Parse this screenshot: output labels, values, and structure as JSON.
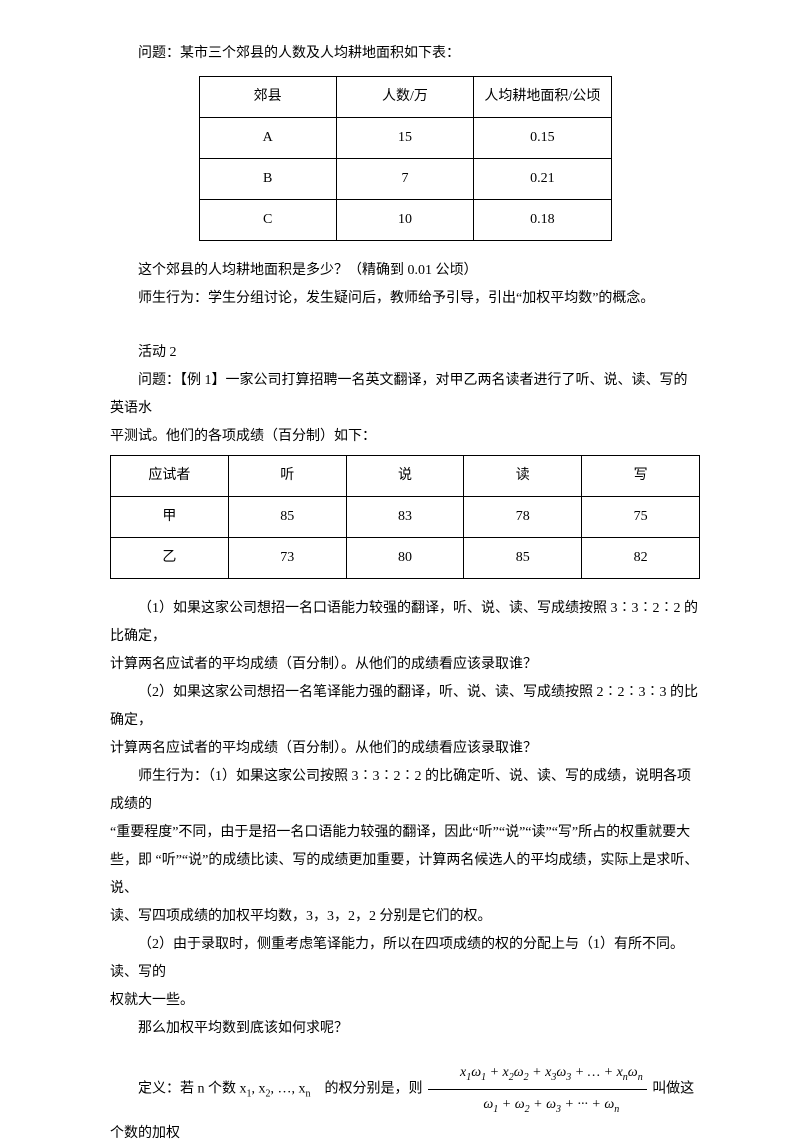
{
  "intro": "问题：某市三个郊县的人数及人均耕地面积如下表：",
  "table1": {
    "headers": [
      "郊县",
      "人数/万",
      "人均耕地面积/公顷"
    ],
    "rows": [
      [
        "A",
        "15",
        "0.15"
      ],
      [
        "B",
        "7",
        "0.21"
      ],
      [
        "C",
        "10",
        "0.18"
      ]
    ]
  },
  "p1": "这个郊县的人均耕地面积是多少？（精确到 0.01 公顷）",
  "p2": "师生行为：学生分组讨论，发生疑问后，教师给予引导，引出“加权平均数”的概念。",
  "activity2": "活动 2",
  "ex1a": "问题：【例 1】一家公司打算招聘一名英文翻译，对甲乙两名读者进行了听、说、读、写的英语水",
  "ex1b": "平测试。他们的各项成绩（百分制）如下：",
  "table2": {
    "headers": [
      "应试者",
      "听",
      "说",
      "读",
      "写"
    ],
    "rows": [
      [
        "甲",
        "85",
        "83",
        "78",
        "75"
      ],
      [
        "乙",
        "73",
        "80",
        "85",
        "82"
      ]
    ]
  },
  "q1a": "（1）如果这家公司想招一名口语能力较强的翻译，听、说、读、写成绩按照 3∶3∶2∶2 的比确定，",
  "q1b": "计算两名应试者的平均成绩（百分制）。从他们的成绩看应该录取谁？",
  "q2a": "（2）如果这家公司想招一名笔译能力强的翻译，听、说、读、写成绩按照 2∶2∶3∶3 的比确定，",
  "q2b": "计算两名应试者的平均成绩（百分制）。从他们的成绩看应该录取谁？",
  "t1a": "师生行为：（1）如果这家公司按照 3∶3∶2∶2 的比确定听、说、读、写的成绩，说明各项成绩的",
  "t1b": "“重要程度”不同，由于是招一名口语能力较强的翻译，因此“听”“说”“读”“写”所占的权重就要大",
  "t1c": "些，即 “听”“说”的成绩比读、写的成绩更加重要，计算两名候选人的平均成绩，实际上是求听、说、",
  "t1d": "读、写四项成绩的加权平均数，3，3，2，2 分别是它们的权。",
  "t2a": "（2）由于录取时，侧重考虑笔译能力，所以在四项成绩的权的分配上与（1）有所不同。读、写的",
  "t2b": "权就大一些。",
  "p3": "那么加权平均数到底该如何求呢？",
  "def_prefix": "定义：若 n 个数 x",
  "def_mid1": ", x",
  "def_mid2": ", …, x",
  "def_suffix": "　的权分别是，则",
  "def_tail": " 叫做这个数的加权",
  "formula": {
    "num_terms": [
      "x",
      "ω",
      " + x",
      "ω",
      " + x",
      "ω",
      " + … + x",
      "ω"
    ],
    "num_subs": [
      "1",
      "1",
      "2",
      "2",
      "3",
      "3",
      "n",
      "n"
    ],
    "den_terms": [
      "ω",
      " + ω",
      " + ω",
      " + ··· + ω"
    ],
    "den_subs": [
      "1",
      "2",
      "3",
      "n"
    ]
  }
}
